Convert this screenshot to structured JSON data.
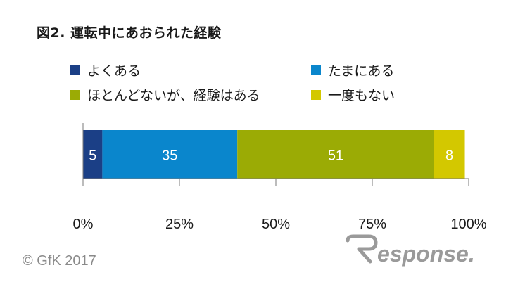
{
  "title": "図2. 運転中にあおられた経験",
  "legend": [
    {
      "label": "よくある",
      "color": "#1b3f86"
    },
    {
      "label": "たまにある",
      "color": "#0a86cc"
    },
    {
      "label": "ほとんどないが、経験はある",
      "color": "#9bab05"
    },
    {
      "label": "一度もない",
      "color": "#d3c800"
    }
  ],
  "copyright": "© GfK 2017",
  "logo_text": "Response.",
  "chart_data": {
    "type": "bar",
    "orientation": "horizontal",
    "stacked": true,
    "title": "図2. 運転中にあおられた経験",
    "categories": [
      ""
    ],
    "series": [
      {
        "name": "よくある",
        "values": [
          5
        ],
        "color": "#1b3f86"
      },
      {
        "name": "たまにある",
        "values": [
          35
        ],
        "color": "#0a86cc"
      },
      {
        "name": "ほとんどないが、経験はある",
        "values": [
          51
        ],
        "color": "#9bab05"
      },
      {
        "name": "一度もない",
        "values": [
          8
        ],
        "color": "#d3c800"
      }
    ],
    "xlim": [
      0,
      100
    ],
    "xticks": [
      "0%",
      "25%",
      "50%",
      "75%",
      "100%"
    ],
    "xtick_values": [
      0,
      25,
      50,
      75,
      100
    ],
    "grid": false,
    "legend_position": "top"
  }
}
